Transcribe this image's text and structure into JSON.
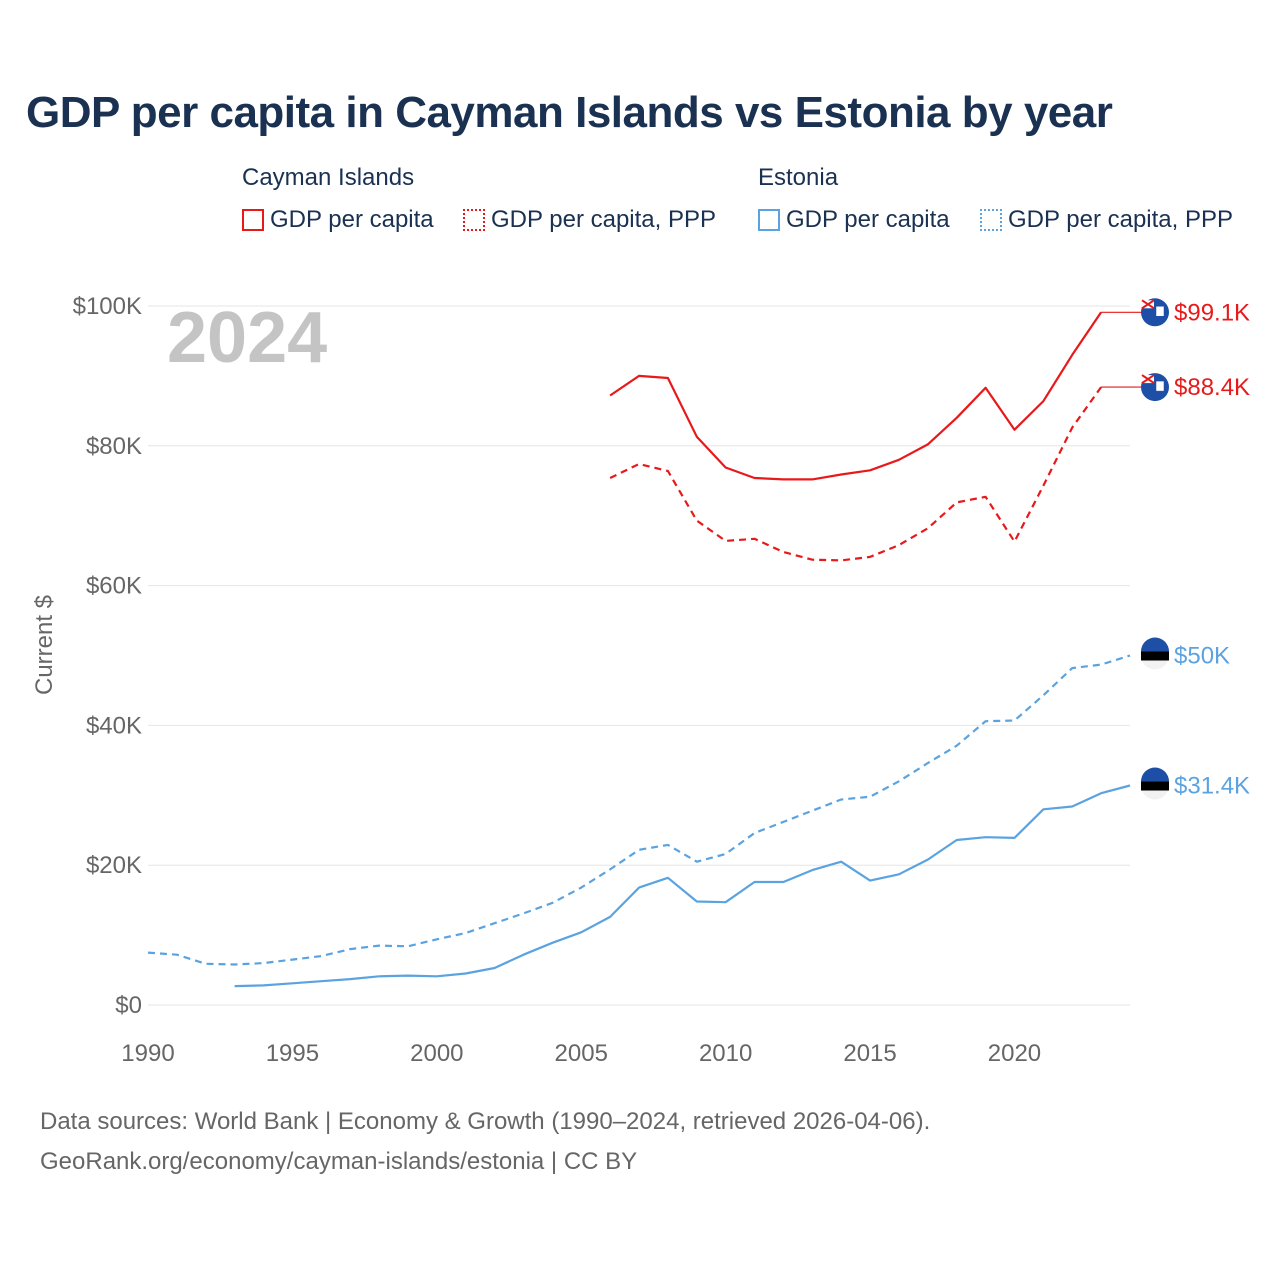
{
  "title": "GDP per capita in Cayman Islands vs Estonia by year",
  "legend": {
    "groups": [
      {
        "name": "Cayman Islands",
        "color": "#e8191b",
        "items": [
          {
            "label": "GDP per capita",
            "style": "solid"
          },
          {
            "label": "GDP per capita, PPP",
            "style": "dotted"
          }
        ]
      },
      {
        "name": "Estonia",
        "color": "#5ba3e0",
        "items": [
          {
            "label": "GDP per capita",
            "style": "solid"
          },
          {
            "label": "GDP per capita, PPP",
            "style": "dotted"
          }
        ]
      }
    ]
  },
  "year_watermark": "2024",
  "source": {
    "line1": "Data sources: World Bank | Economy & Growth (1990–2024, retrieved 2026-04-06).",
    "line2": "GeoRank.org/economy/cayman-islands/estonia | CC BY"
  },
  "chart_data": {
    "type": "line",
    "title": "GDP per capita in Cayman Islands vs Estonia by year",
    "xlabel": "",
    "ylabel": "Current $",
    "xlim": [
      1990,
      2024
    ],
    "ylim": [
      0,
      100000
    ],
    "x_ticks": [
      1990,
      1995,
      2000,
      2005,
      2010,
      2015,
      2020
    ],
    "x_tick_labels": [
      "1990",
      "1995",
      "2000",
      "2005",
      "2010",
      "2015",
      "2020"
    ],
    "y_ticks": [
      0,
      20000,
      40000,
      60000,
      80000,
      100000
    ],
    "y_tick_labels": [
      "$0",
      "$20K",
      "$40K",
      "$60K",
      "$80K",
      "$100K"
    ],
    "grid": true,
    "series": [
      {
        "name": "Cayman Islands GDP per capita",
        "color": "#e8191b",
        "dash": "solid",
        "end_label": "$99.1K",
        "flag": "cayman",
        "x": [
          2006,
          2007,
          2008,
          2009,
          2010,
          2011,
          2012,
          2013,
          2014,
          2015,
          2016,
          2017,
          2018,
          2019,
          2020,
          2021,
          2022,
          2023
        ],
        "values": [
          87200,
          90000,
          89700,
          81300,
          76900,
          75400,
          75200,
          75200,
          75900,
          76500,
          78000,
          80200,
          84000,
          88300,
          82300,
          86400,
          93000,
          99100
        ]
      },
      {
        "name": "Cayman Islands GDP per capita, PPP",
        "color": "#e8191b",
        "dash": "dashed",
        "end_label": "$88.4K",
        "flag": "cayman",
        "x": [
          2006,
          2007,
          2008,
          2009,
          2010,
          2011,
          2012,
          2013,
          2014,
          2015,
          2016,
          2017,
          2018,
          2019,
          2020,
          2021,
          2022,
          2023
        ],
        "values": [
          75400,
          77400,
          76400,
          69300,
          66400,
          66700,
          64800,
          63700,
          63600,
          64100,
          65800,
          68200,
          71900,
          72700,
          66300,
          74300,
          82600,
          88400
        ]
      },
      {
        "name": "Estonia GDP per capita, PPP",
        "color": "#5ba3e0",
        "dash": "dashed",
        "end_label": "$50K",
        "flag": "estonia",
        "x": [
          1990,
          1991,
          1992,
          1993,
          1994,
          1995,
          1996,
          1997,
          1998,
          1999,
          2000,
          2001,
          2002,
          2003,
          2004,
          2005,
          2006,
          2007,
          2008,
          2009,
          2010,
          2011,
          2012,
          2013,
          2014,
          2015,
          2016,
          2017,
          2018,
          2019,
          2020,
          2021,
          2022,
          2023,
          2024
        ],
        "values": [
          7500,
          7200,
          5900,
          5800,
          6000,
          6500,
          7000,
          8000,
          8500,
          8400,
          9400,
          10300,
          11700,
          13100,
          14600,
          16800,
          19400,
          22200,
          22900,
          20500,
          21600,
          24600,
          26200,
          27800,
          29400,
          29800,
          32000,
          34600,
          37100,
          40600,
          40700,
          44300,
          48200,
          48700,
          50000
        ]
      },
      {
        "name": "Estonia GDP per capita",
        "color": "#5ba3e0",
        "dash": "solid",
        "end_label": "$31.4K",
        "flag": "estonia",
        "x": [
          1993,
          1994,
          1995,
          1996,
          1997,
          1998,
          1999,
          2000,
          2001,
          2002,
          2003,
          2004,
          2005,
          2006,
          2007,
          2008,
          2009,
          2010,
          2011,
          2012,
          2013,
          2014,
          2015,
          2016,
          2017,
          2018,
          2019,
          2020,
          2021,
          2022,
          2023,
          2024
        ],
        "values": [
          2700,
          2800,
          3100,
          3400,
          3700,
          4100,
          4200,
          4100,
          4500,
          5300,
          7200,
          8900,
          10400,
          12600,
          16800,
          18200,
          14800,
          14700,
          17600,
          17600,
          19300,
          20500,
          17800,
          18700,
          20800,
          23600,
          24000,
          23900,
          28000,
          28400,
          30300,
          31400
        ]
      }
    ]
  }
}
